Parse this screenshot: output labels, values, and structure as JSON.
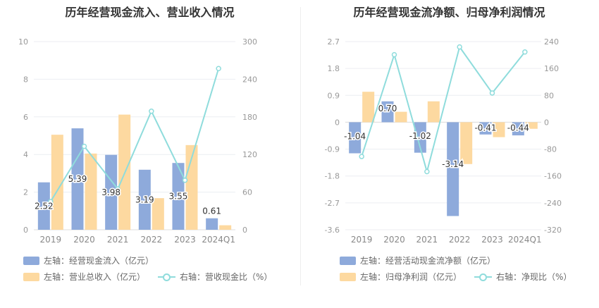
{
  "chart_data": [
    {
      "type": "bar",
      "title": "历年经营现金流入、营业收入情况",
      "categories": [
        "2019",
        "2020",
        "2021",
        "2022",
        "2023",
        "2024Q1"
      ],
      "left_axis": {
        "min": 0,
        "max": 10,
        "ticks": [
          "0",
          "2",
          "4",
          "6",
          "8",
          "10"
        ]
      },
      "right_axis": {
        "min": 0,
        "max": 300,
        "ticks": [
          "0",
          "60",
          "120",
          "180",
          "240",
          "300"
        ]
      },
      "series": [
        {
          "name": "左轴：经营现金流入（亿元）",
          "axis": "left",
          "kind": "bar",
          "color": "#8eaadb",
          "values": [
            2.52,
            5.39,
            3.98,
            3.19,
            3.55,
            0.61
          ],
          "labels": [
            "2.52",
            "5.39",
            "3.98",
            "3.19",
            "3.55",
            "0.61"
          ]
        },
        {
          "name": "左轴：营业总收入（亿元）",
          "axis": "left",
          "kind": "bar",
          "color": "#fdd9a0",
          "values": [
            5.05,
            4.05,
            6.12,
            1.68,
            4.5,
            0.24
          ]
        },
        {
          "name": "右轴：营收现金比（%）",
          "axis": "right",
          "kind": "line",
          "color": "#8fdcdc",
          "values": [
            45,
            133,
            65,
            189,
            79,
            257
          ]
        }
      ]
    },
    {
      "type": "bar",
      "title": "历年经营现金流净额、归母净利润情况",
      "categories": [
        "2019",
        "2020",
        "2021",
        "2022",
        "2023",
        "2024Q1"
      ],
      "left_axis": {
        "min": -3.6,
        "max": 2.7,
        "ticks": [
          "-3.6",
          "-2.7",
          "-1.8",
          "-0.9",
          "0",
          "0.9",
          "1.8",
          "2.7"
        ]
      },
      "right_axis": {
        "min": -320,
        "max": 240,
        "ticks": [
          "-320",
          "-240",
          "-160",
          "-80",
          "0",
          "80",
          "160",
          "240"
        ]
      },
      "series": [
        {
          "name": "左轴：经营活动现金流净额（亿元）",
          "axis": "left",
          "kind": "bar",
          "color": "#8eaadb",
          "values": [
            -1.04,
            0.7,
            -1.02,
            -3.14,
            -0.41,
            -0.44
          ],
          "labels": [
            "-1.04",
            "0.70",
            "-1.02",
            "-3.14",
            "-0.41",
            "-0.44"
          ]
        },
        {
          "name": "左轴：归母净利润（亿元）",
          "axis": "left",
          "kind": "bar",
          "color": "#fdd9a0",
          "values": [
            1.02,
            0.35,
            0.7,
            -1.4,
            -0.5,
            -0.22
          ]
        },
        {
          "name": "右轴：净现比（%）",
          "axis": "right",
          "kind": "line",
          "color": "#8fdcdc",
          "values": [
            -102,
            201,
            -147,
            224,
            87,
            209
          ]
        }
      ]
    }
  ]
}
